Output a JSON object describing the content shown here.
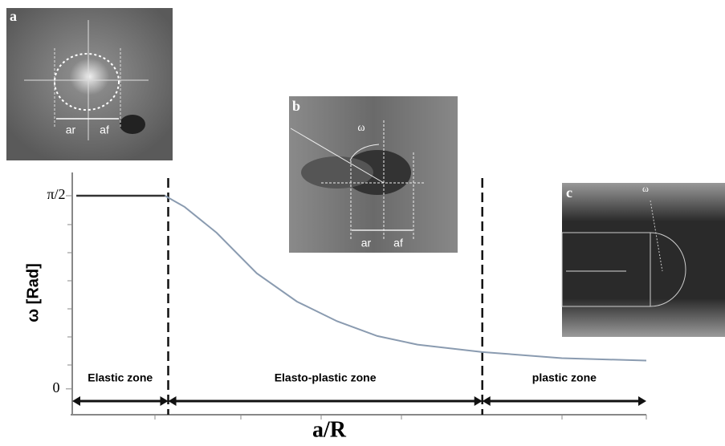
{
  "chart_data": {
    "type": "line",
    "y_label": "ω [Rad]",
    "x_label": "a/R",
    "x": [
      0.05,
      1.13,
      1.37,
      1.76,
      2.25,
      2.74,
      3.23,
      3.72,
      4.21,
      5.0,
      5.97,
      7.0
    ],
    "values": [
      1.5708,
      1.5708,
      1.48,
      1.27,
      0.94,
      0.71,
      0.55,
      0.43,
      0.36,
      0.3,
      0.25,
      0.23
    ],
    "color": "#8a9bb0",
    "xlim": [
      0,
      7
    ],
    "ylim": [
      -0.21,
      1.76
    ],
    "yticks": [
      {
        "value": 0,
        "label": "0"
      },
      {
        "value": 1.5708,
        "label": "π/2"
      }
    ],
    "zones": [
      "Elastic zone",
      "Elasto-plastic zone",
      "plastic zone"
    ],
    "zone_bounds": [
      0,
      1.17,
      5.0,
      7.0
    ]
  },
  "insets": [
    {
      "letter": "a",
      "labels": [
        "ar",
        "af"
      ]
    },
    {
      "letter": "b",
      "labels": [
        "ω",
        "ar",
        "af"
      ]
    },
    {
      "letter": "c",
      "labels": [
        "ω"
      ]
    }
  ]
}
